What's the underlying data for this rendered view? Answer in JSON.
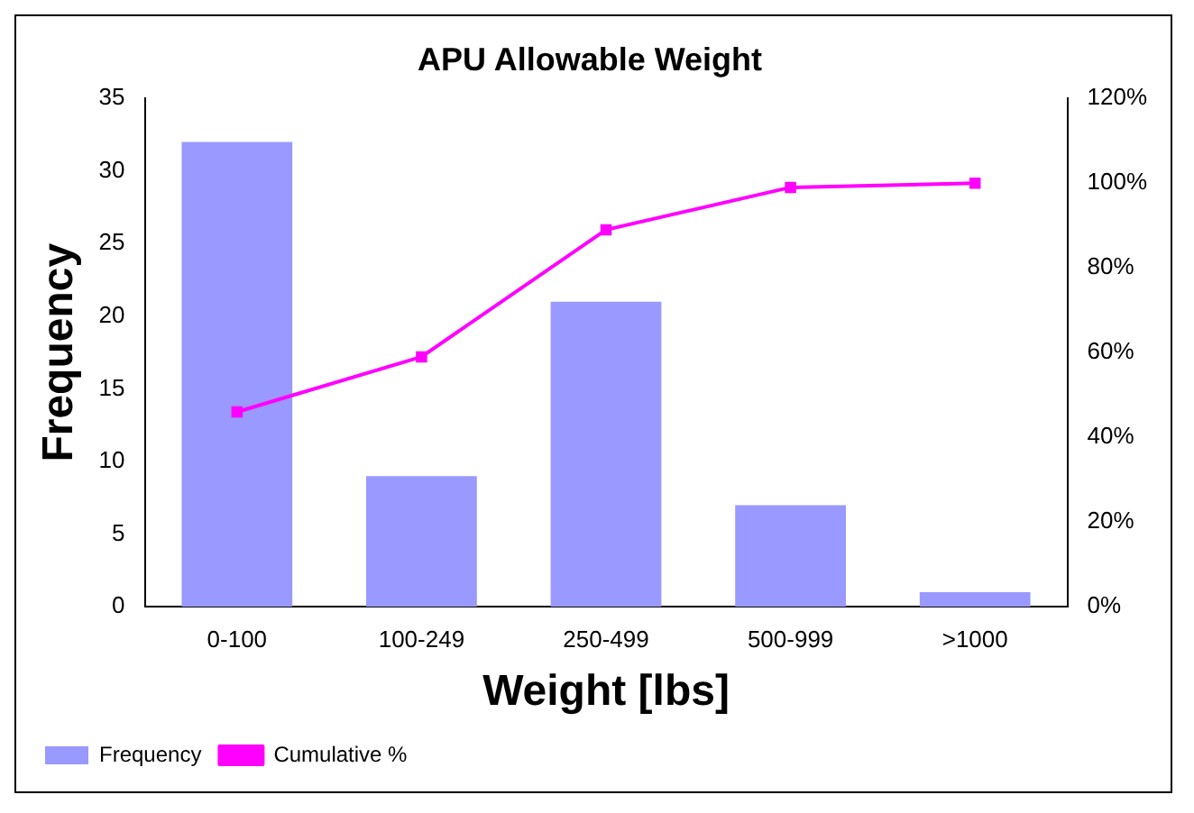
{
  "chart_data": {
    "type": "bar",
    "title": "APU Allowable Weight",
    "xlabel": "Weight [lbs]",
    "ylabel": "Frequency",
    "categories": [
      "0-100",
      "100-249",
      "250-499",
      "500-999",
      ">1000"
    ],
    "series": [
      {
        "name": "Frequency",
        "color": "#9999ff",
        "values": [
          32,
          9,
          21,
          7,
          1
        ]
      },
      {
        "name": "Cumulative %",
        "type": "line",
        "axis": "y2",
        "color": "#ff00ff",
        "marker": "square",
        "values": [
          46,
          59,
          89,
          99,
          100
        ]
      }
    ],
    "ylim": [
      0,
      35
    ],
    "yticks": [
      0,
      5,
      10,
      15,
      20,
      25,
      30,
      35
    ],
    "y2lim": [
      0,
      120
    ],
    "y2ticks": [
      {
        "value": 0,
        "label": "0%"
      },
      {
        "value": 20,
        "label": "20%"
      },
      {
        "value": 40,
        "label": "40%"
      },
      {
        "value": 60,
        "label": "60%"
      },
      {
        "value": 80,
        "label": "80%"
      },
      {
        "value": 100,
        "label": "100%"
      },
      {
        "value": 120,
        "label": "120%"
      }
    ],
    "grid": false,
    "legend": "bottom left"
  }
}
